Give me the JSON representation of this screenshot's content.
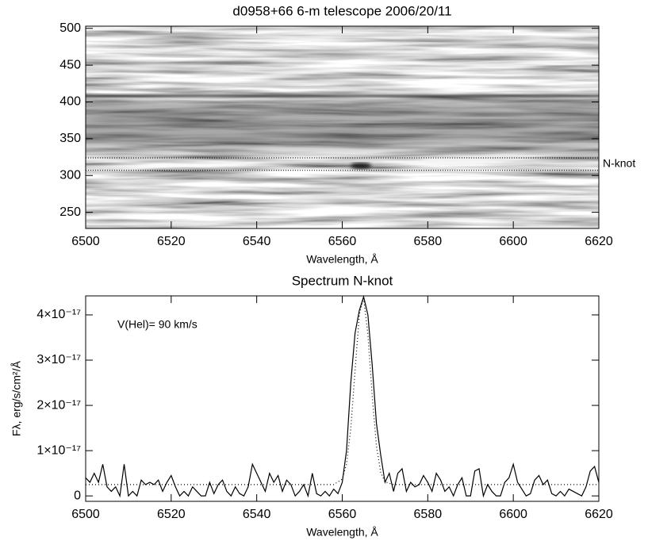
{
  "chart_data": [
    {
      "type": "image",
      "title": "d0958+66 6-m telescope 2006/20/11",
      "xlabel": "Wavelength, Å",
      "xlim": [
        6500,
        6620
      ],
      "xticks": [
        6500,
        6520,
        6540,
        6560,
        6580,
        6600,
        6620
      ],
      "ylim": [
        228,
        503
      ],
      "yticks": [
        250,
        300,
        350,
        400,
        450,
        500
      ],
      "hlines": [
        307,
        324
      ],
      "hline_label": "N-knot"
    },
    {
      "type": "line",
      "title": "Spectrum N-knot",
      "xlabel": "Wavelength, Å",
      "ylabel": "Fλ, erg/s/cm²/Å",
      "annotation": "V(Hel)=  90 km/s",
      "xlim": [
        6500,
        6620
      ],
      "xticks": [
        6500,
        6520,
        6540,
        6560,
        6580,
        6600,
        6620
      ],
      "ylim": [
        -1.2e-18,
        4.42e-17
      ],
      "yticks": [
        0,
        {
          "value": 1e-17,
          "label": "1×10⁻¹⁷"
        },
        {
          "value": 2e-17,
          "label": "2×10⁻¹⁷"
        },
        {
          "value": 3e-17,
          "label": "3×10⁻¹⁷"
        },
        {
          "value": 4e-17,
          "label": "4×10⁻¹⁷"
        }
      ],
      "series": [
        {
          "color": "#000000",
          "dash": "none",
          "x": [
            6500,
            6501,
            6502,
            6503,
            6504,
            6505,
            6506,
            6507,
            6508,
            6509,
            6510,
            6511,
            6512,
            6513,
            6514,
            6515,
            6516,
            6517,
            6518,
            6519,
            6520,
            6521,
            6522,
            6523,
            6524,
            6525,
            6526,
            6527,
            6528,
            6529,
            6530,
            6531,
            6532,
            6533,
            6534,
            6535,
            6536,
            6537,
            6538,
            6539,
            6540,
            6541,
            6542,
            6543,
            6544,
            6545,
            6546,
            6547,
            6548,
            6549,
            6550,
            6551,
            6552,
            6553,
            6554,
            6555,
            6556,
            6557,
            6558,
            6559,
            6560,
            6561,
            6562,
            6563,
            6564,
            6565,
            6566,
            6567,
            6568,
            6569,
            6570,
            6571,
            6572,
            6573,
            6574,
            6575,
            6576,
            6577,
            6578,
            6579,
            6580,
            6581,
            6582,
            6583,
            6584,
            6585,
            6586,
            6587,
            6588,
            6589,
            6590,
            6591,
            6592,
            6593,
            6594,
            6595,
            6596,
            6597,
            6598,
            6599,
            6600,
            6601,
            6602,
            6603,
            6604,
            6605,
            6606,
            6607,
            6608,
            6609,
            6610,
            6611,
            6612,
            6613,
            6614,
            6615,
            6616,
            6617,
            6618,
            6619,
            6620
          ],
          "values": [
            4e-18,
            3e-18,
            5e-18,
            3e-18,
            7e-18,
            2e-18,
            1e-18,
            2e-18,
            0,
            7e-18,
            0,
            1e-18,
            0,
            3.5e-18,
            2.5e-18,
            3e-18,
            2.5e-18,
            3.5e-18,
            1e-18,
            3e-18,
            4.5e-18,
            2e-18,
            0,
            1e-18,
            0,
            2e-18,
            1e-18,
            0,
            0,
            3e-18,
            5e-19,
            2.5e-18,
            3.5e-18,
            1e-18,
            0,
            2e-18,
            5e-19,
            0,
            2e-18,
            7e-18,
            5e-18,
            3e-18,
            1e-18,
            5e-18,
            3e-18,
            4.5e-18,
            1e-18,
            3.5e-18,
            2.5e-18,
            0,
            1e-18,
            2.5e-18,
            0,
            5e-18,
            5e-19,
            0,
            1e-18,
            0,
            1.5e-18,
            5e-19,
            3e-18,
            1e-17,
            2.5e-17,
            3.6e-17,
            4.1e-17,
            4.4e-17,
            4e-17,
            2.9e-17,
            1.6e-17,
            9e-18,
            3e-18,
            5e-18,
            1e-18,
            5e-18,
            6e-18,
            1e-18,
            3e-18,
            2e-18,
            2.5e-18,
            4.5e-18,
            3e-18,
            1e-18,
            5e-18,
            3.5e-18,
            1e-18,
            2e-18,
            0,
            2.5e-18,
            4e-18,
            0,
            0,
            5.5e-18,
            6e-18,
            0,
            2.5e-18,
            1e-18,
            0,
            0,
            3e-18,
            4e-18,
            7e-18,
            3e-18,
            1.5e-18,
            0,
            5e-19,
            3.5e-18,
            4.5e-18,
            2.5e-18,
            3.5e-18,
            5e-19,
            0,
            1e-18,
            0,
            1.5e-18,
            1e-18,
            5e-19,
            0,
            2e-18,
            5.5e-18,
            6.5e-18,
            3e-18
          ]
        },
        {
          "color": "#000000",
          "dash": "1 3",
          "x": [
            6500,
            6556,
            6558,
            6560,
            6561,
            6562,
            6563,
            6564,
            6565,
            6566,
            6567,
            6568,
            6569,
            6570,
            6572,
            6620
          ],
          "values": [
            2.5e-18,
            2.5e-18,
            2.5e-18,
            3.7e-18,
            7e-18,
            1.49e-17,
            2.77e-17,
            4.01e-17,
            4.37e-17,
            3.57e-17,
            2.22e-17,
            1.1e-17,
            5.2e-18,
            3.1e-18,
            2.5e-18,
            2.5e-18
          ]
        }
      ]
    }
  ]
}
